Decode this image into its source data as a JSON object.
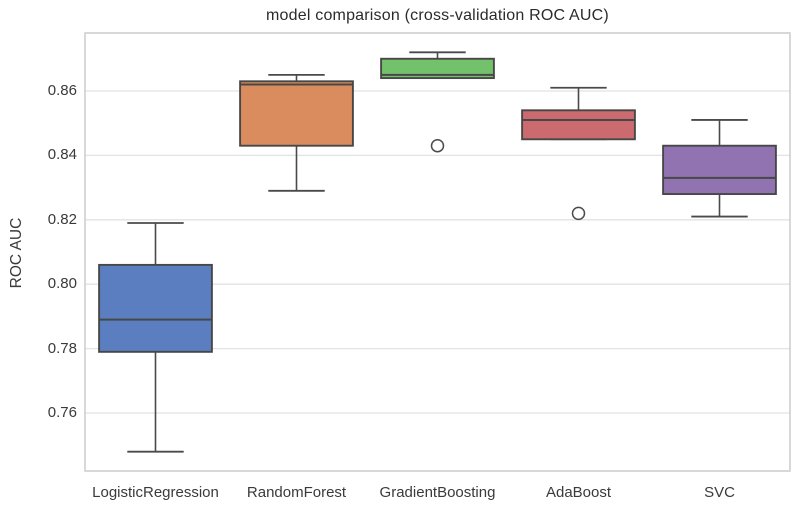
{
  "chart_data": {
    "type": "box",
    "title": "model comparison (cross-validation ROC AUC)",
    "ylabel": "ROC AUC",
    "xlabel": "",
    "categories": [
      "LogisticRegression",
      "RandomForest",
      "GradientBoosting",
      "AdaBoost",
      "SVC"
    ],
    "y_ticks": [
      0.76,
      0.78,
      0.8,
      0.82,
      0.84,
      0.86
    ],
    "ylim": [
      0.742,
      0.878
    ],
    "grid": true,
    "legend": false,
    "series": [
      {
        "name": "LogisticRegression",
        "color": "#5a7ebf",
        "whislo": 0.748,
        "q1": 0.779,
        "med": 0.789,
        "q3": 0.806,
        "whishi": 0.819,
        "fliers": []
      },
      {
        "name": "RandomForest",
        "color": "#db8c5e",
        "whislo": 0.829,
        "q1": 0.843,
        "med": 0.862,
        "q3": 0.863,
        "whishi": 0.865,
        "fliers": []
      },
      {
        "name": "GradientBoosting",
        "color": "#73c26b",
        "whislo": 0.864,
        "q1": 0.864,
        "med": 0.865,
        "q3": 0.87,
        "whishi": 0.872,
        "fliers": [
          0.843
        ]
      },
      {
        "name": "AdaBoost",
        "color": "#cc6b6f",
        "whislo": 0.845,
        "q1": 0.845,
        "med": 0.851,
        "q3": 0.854,
        "whishi": 0.861,
        "fliers": [
          0.822
        ]
      },
      {
        "name": "SVC",
        "color": "#9173b2",
        "whislo": 0.821,
        "q1": 0.828,
        "med": 0.833,
        "q3": 0.843,
        "whishi": 0.851,
        "fliers": []
      }
    ],
    "style": {
      "grid_color": "#e2e2e2",
      "axes_border_color": "#cccccc",
      "box_edge_color": "#474747",
      "whisker_color": "#4a4a4a",
      "text_color": "#3a3a3a",
      "plot_background": "#ffffff"
    }
  }
}
